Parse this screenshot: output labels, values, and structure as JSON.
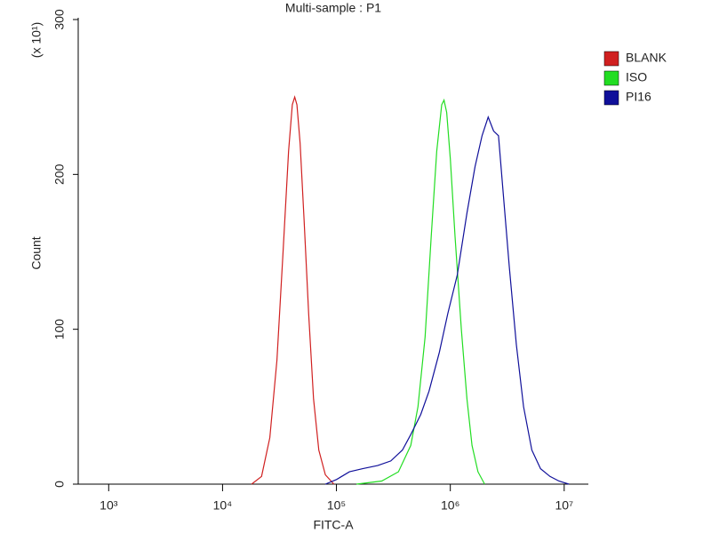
{
  "chart_data": {
    "type": "line",
    "title": "Multi-sample : P1",
    "x_label": "FITC-A",
    "y_label": "Count",
    "y_unit": "(x 10¹)",
    "x_log": true,
    "legend": "right",
    "xlim": [
      540,
      16300000
    ],
    "xticks": [
      {
        "value": 1000,
        "label": "10³"
      },
      {
        "value": 10000,
        "label": "10⁴"
      },
      {
        "value": 100000,
        "label": "10⁵"
      },
      {
        "value": 1000000,
        "label": "10⁶"
      },
      {
        "value": 10000000,
        "label": "10⁷"
      }
    ],
    "ylim": [
      0,
      300
    ],
    "yticks": [
      0,
      100,
      200,
      300
    ],
    "series": [
      {
        "name": "BLANK",
        "color": "#d02020",
        "x": [
          18000,
          22000,
          26000,
          30000,
          34000,
          38000,
          41000,
          43000,
          45000,
          48000,
          52000,
          57000,
          63000,
          70000,
          80000,
          95000
        ],
        "values": [
          0,
          5,
          30,
          80,
          150,
          215,
          245,
          250,
          245,
          220,
          170,
          110,
          55,
          22,
          6,
          0
        ]
      },
      {
        "name": "ISO",
        "color": "#22dd22",
        "x": [
          150000,
          250000,
          350000,
          450000,
          520000,
          600000,
          680000,
          760000,
          840000,
          880000,
          930000,
          1000000,
          1100000,
          1250000,
          1400000,
          1550000,
          1750000,
          2000000
        ],
        "values": [
          0,
          2,
          8,
          25,
          50,
          95,
          160,
          215,
          245,
          248,
          240,
          210,
          160,
          100,
          55,
          25,
          8,
          0
        ]
      },
      {
        "name": "PI16",
        "color": "#10109a",
        "x": [
          80000,
          100000,
          130000,
          170000,
          230000,
          300000,
          380000,
          450000,
          550000,
          650000,
          800000,
          950000,
          1150000,
          1400000,
          1650000,
          1900000,
          2150000,
          2400000,
          2650000,
          2900000,
          3300000,
          3800000,
          4400000,
          5200000,
          6200000,
          7500000,
          9000000,
          11000000
        ],
        "values": [
          0,
          3,
          8,
          10,
          12,
          15,
          22,
          32,
          45,
          60,
          85,
          110,
          135,
          175,
          205,
          225,
          237,
          228,
          225,
          190,
          140,
          90,
          50,
          22,
          10,
          5,
          2,
          0
        ]
      }
    ]
  }
}
